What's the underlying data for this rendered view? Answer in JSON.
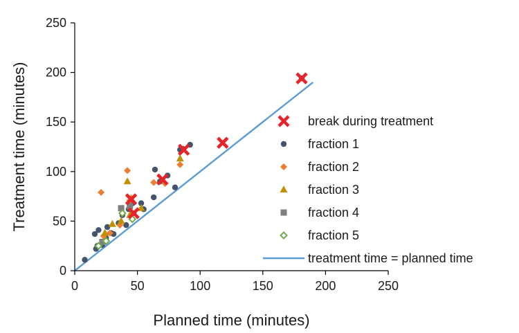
{
  "chart_data": {
    "type": "scatter",
    "title": "",
    "xlabel": "Planned time (minutes)",
    "ylabel": "Treatment time (minutes)",
    "xlim": [
      0,
      250
    ],
    "ylim": [
      0,
      250
    ],
    "xticks": [
      0,
      50,
      100,
      150,
      200,
      250
    ],
    "yticks": [
      0,
      50,
      100,
      150,
      200,
      250
    ],
    "grid": false,
    "legend_position": "right",
    "series": [
      {
        "name": "break during treatment",
        "marker": "x",
        "color": "#e8242a",
        "points": [
          [
            45,
            72
          ],
          [
            47,
            58
          ],
          [
            70,
            92
          ],
          [
            87,
            122
          ],
          [
            118,
            129
          ],
          [
            181,
            194
          ]
        ]
      },
      {
        "name": "fraction 1",
        "marker": "circle",
        "color": "#44546a",
        "points": [
          [
            8,
            11
          ],
          [
            16,
            37
          ],
          [
            17,
            22
          ],
          [
            18,
            25
          ],
          [
            19,
            41
          ],
          [
            22,
            26
          ],
          [
            25,
            33
          ],
          [
            26,
            44
          ],
          [
            29,
            38
          ],
          [
            31,
            37
          ],
          [
            35,
            48
          ],
          [
            38,
            56
          ],
          [
            41,
            46
          ],
          [
            43,
            62
          ],
          [
            46,
            68
          ],
          [
            47,
            58
          ],
          [
            53,
            68
          ],
          [
            55,
            62
          ],
          [
            63,
            74
          ],
          [
            64,
            102
          ],
          [
            68,
            90
          ],
          [
            74,
            96
          ],
          [
            80,
            84
          ],
          [
            84,
            122
          ],
          [
            86,
            123
          ],
          [
            92,
            127
          ],
          [
            181,
            194
          ]
        ]
      },
      {
        "name": "fraction 2",
        "marker": "diamond",
        "color": "#ed7d31",
        "points": [
          [
            21,
            79
          ],
          [
            23,
            35
          ],
          [
            28,
            38
          ],
          [
            36,
            46
          ],
          [
            42,
            101
          ],
          [
            44,
            71
          ],
          [
            46,
            58
          ],
          [
            63,
            89
          ],
          [
            72,
            88
          ],
          [
            84,
            107
          ]
        ]
      },
      {
        "name": "fraction 3",
        "marker": "triangle",
        "color": "#bf9000",
        "points": [
          [
            24,
            38
          ],
          [
            30,
            47
          ],
          [
            37,
            50
          ],
          [
            42,
            90
          ],
          [
            44,
            56
          ],
          [
            45,
            73
          ],
          [
            53,
            63
          ],
          [
            84,
            113
          ]
        ]
      },
      {
        "name": "fraction 4",
        "marker": "square",
        "color": "#7f7f7f",
        "points": [
          [
            22,
            29
          ],
          [
            37,
            63
          ],
          [
            44,
            65
          ]
        ]
      },
      {
        "name": "fraction 5",
        "marker": "open-diamond",
        "color": "#70ad47",
        "points": [
          [
            19,
            25
          ],
          [
            25,
            30
          ],
          [
            38,
            58
          ],
          [
            46,
            52
          ]
        ]
      },
      {
        "name": "treatment time = planned time",
        "marker": "line",
        "color": "#5b9bd5",
        "points": [
          [
            0,
            0
          ],
          [
            190,
            190
          ]
        ]
      }
    ]
  }
}
